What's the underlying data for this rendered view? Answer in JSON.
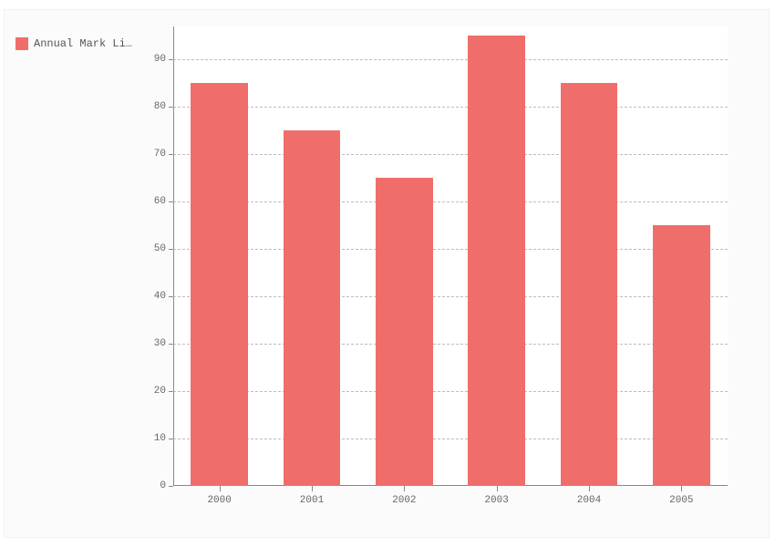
{
  "chart": {
    "type": "bar",
    "background_color": "#fbfbfb",
    "plot_background_color": "#ffffff",
    "legend": {
      "label": "Annual Mark Li…",
      "swatch_color": "#ef6e6b",
      "text_color": "#555555",
      "fontsize": 12
    },
    "series": {
      "color": "#ef6e6b",
      "categories": [
        "2000",
        "2001",
        "2002",
        "2003",
        "2004",
        "2005"
      ],
      "values": [
        85,
        75,
        65,
        95,
        85,
        55
      ]
    },
    "y_axis": {
      "min": 0,
      "max": 97,
      "ticks": [
        0,
        10,
        20,
        30,
        40,
        50,
        60,
        70,
        80,
        90
      ],
      "tick_color": "#888888",
      "label_color": "#666666",
      "label_fontsize": 11,
      "grid_color": "#bdbdbd",
      "grid_dash": "dashed",
      "axis_line_color": "#888888"
    },
    "x_axis": {
      "tick_color": "#888888",
      "label_color": "#666666",
      "label_fontsize": 11,
      "axis_line_color": "#888888"
    },
    "bar_width_ratio": 0.62,
    "font_family": "Courier New, monospace"
  }
}
